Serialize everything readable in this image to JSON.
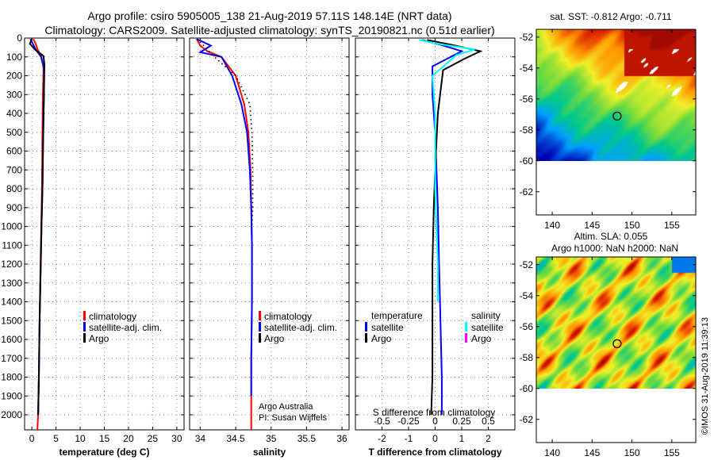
{
  "figure": {
    "title_line1": "Argo profile: csiro 5905005_138 21-Aug-2019 57.11S 148.14E (NRT data)",
    "title_line2": "Climatology: CARS2009. Satellite-adjusted climatology: synTS_20190821.nc (0.51d earlier)",
    "watermark": "©IMOS 31-Aug-2019 11:39:13",
    "credit_line1": "Argo Australia",
    "credit_line2": "PI: Susan Wijffels"
  },
  "colors": {
    "climatology": "#ff0000",
    "satellite": "#0000ff",
    "argo": "#000000",
    "sal_satellite": "#00ffff",
    "sal_argo": "#ff00ff"
  },
  "chart_data": [
    {
      "type": "line",
      "id": "temperature",
      "xlabel": "temperature (deg C)",
      "xlim": [
        -1.5,
        31.5
      ],
      "xticks": [
        0,
        5,
        10,
        15,
        20,
        25,
        30
      ],
      "ylim": [
        2080,
        0
      ],
      "yticks": [
        0,
        100,
        200,
        300,
        400,
        500,
        600,
        700,
        800,
        900,
        1000,
        1100,
        1200,
        1300,
        1400,
        1500,
        1600,
        1700,
        1800,
        1900,
        2000
      ],
      "legend": [
        "climatology",
        "satellite-adj. clim.",
        "Argo"
      ],
      "series": [
        {
          "name": "climatology",
          "color": "#ff0000",
          "x": [
            0.3,
            0.8,
            1.2,
            2.0,
            2.4,
            2.3,
            2.2,
            2.1,
            1.95,
            1.8,
            1.6,
            1.45,
            1.3,
            1.15
          ],
          "y": [
            5,
            30,
            60,
            100,
            160,
            300,
            500,
            800,
            1000,
            1200,
            1500,
            1800,
            2000,
            2080
          ]
        },
        {
          "name": "satellite-adj. clim.",
          "color": "#0000ff",
          "x": [
            -0.3,
            0.2,
            0.8,
            1.9,
            2.5,
            2.5,
            2.35,
            2.2,
            2.0,
            1.85,
            1.6,
            1.45,
            1.3
          ],
          "y": [
            5,
            30,
            60,
            100,
            160,
            300,
            500,
            800,
            1000,
            1200,
            1500,
            1800,
            2000
          ]
        },
        {
          "name": "Argo",
          "color": "#000000",
          "x": [
            0.0,
            -0.4,
            0.6,
            2.4,
            2.6,
            2.5,
            2.35,
            2.2,
            2.0,
            1.85,
            1.6,
            1.45,
            1.3
          ],
          "y": [
            5,
            30,
            60,
            95,
            140,
            300,
            500,
            800,
            1000,
            1200,
            1500,
            1800,
            2000
          ]
        }
      ]
    },
    {
      "type": "line",
      "id": "salinity",
      "xlabel": "salinity",
      "xlim": [
        33.85,
        36.1
      ],
      "xticks": [
        34,
        34.5,
        35,
        35.5,
        36
      ],
      "ylim": [
        2080,
        0
      ],
      "legend": [
        "climatology",
        "satellite-adj. clim.",
        "Argo"
      ],
      "series": [
        {
          "name": "climatology",
          "color": "#ff0000",
          "x": [
            33.95,
            34.0,
            34.1,
            34.3,
            34.5,
            34.62,
            34.68,
            34.71,
            34.72,
            34.73,
            34.73,
            34.72,
            34.72,
            34.72
          ],
          "y": [
            5,
            40,
            70,
            100,
            200,
            350,
            500,
            700,
            900,
            1100,
            1400,
            1700,
            1900,
            2080
          ]
        },
        {
          "name": "satellite-adj. clim.",
          "color": "#0000ff",
          "x": [
            33.95,
            34.15,
            34.0,
            34.3,
            34.45,
            34.58,
            34.66,
            34.7,
            34.72,
            34.73,
            34.73,
            34.72,
            34.72
          ],
          "y": [
            5,
            40,
            75,
            100,
            200,
            350,
            500,
            700,
            900,
            1100,
            1400,
            1700,
            1900
          ]
        },
        {
          "name": "Argo",
          "color": "#000000",
          "dotted": true,
          "x": [
            33.95,
            34.05,
            34.2,
            34.5,
            34.7,
            34.73,
            34.74,
            34.74,
            34.73
          ],
          "y": [
            5,
            40,
            100,
            200,
            350,
            500,
            700,
            900,
            1000
          ]
        }
      ]
    },
    {
      "type": "line",
      "id": "difference",
      "xlabel": "T difference from climatology",
      "xlabel_top": "S difference from climatology",
      "xlim": [
        -3.0,
        3.0
      ],
      "xticks": [
        -2,
        -1,
        0,
        1,
        2
      ],
      "xticks_top": [
        "-0.5",
        "-0.25",
        "0",
        "0.25",
        "0.5"
      ],
      "xticks_top_pos": [
        -2,
        -1,
        0,
        1,
        2
      ],
      "ylim": [
        2080,
        0
      ],
      "legend_left_title": "temperature",
      "legend_right_title": "salinity",
      "legend_left": [
        "satellite",
        "Argo"
      ],
      "legend_right": [
        "satellite",
        "Argo"
      ],
      "series": [
        {
          "name": "T satellite",
          "color": "#0000ff",
          "x": [
            -0.5,
            0.2,
            1.0,
            -0.1,
            -0.1,
            0.0,
            0.05,
            0.1,
            0.15,
            0.2,
            0.25,
            0.25
          ],
          "y": [
            10,
            35,
            70,
            150,
            300,
            500,
            700,
            900,
            1200,
            1500,
            1800,
            2000
          ]
        },
        {
          "name": "T Argo",
          "color": "#000000",
          "x": [
            -0.3,
            0.6,
            1.7,
            1.1,
            0.3,
            0.1,
            0.0,
            -0.05,
            -0.1,
            -0.1,
            -0.1,
            -0.15
          ],
          "y": [
            10,
            35,
            70,
            110,
            170,
            400,
            700,
            900,
            1200,
            1500,
            1800,
            2000
          ]
        },
        {
          "name": "S satellite",
          "color": "#00ffff",
          "x": [
            -0.6,
            0.3,
            1.5,
            0.8,
            -0.1,
            0.0,
            0.0,
            0.0,
            0.05,
            0.1,
            0.1
          ],
          "y": [
            10,
            35,
            60,
            90,
            200,
            400,
            600,
            800,
            1000,
            1200,
            1400
          ]
        }
      ]
    },
    {
      "type": "heatmap",
      "id": "sst_map",
      "title": "sat. SST: -0.812 Argo: -0.711",
      "xlim": [
        138,
        158
      ],
      "ylim": [
        -63.5,
        -51.5
      ],
      "xticks": [
        140,
        145,
        150,
        155
      ],
      "yticks": [
        -52,
        -54,
        -56,
        -58,
        -60,
        -62
      ],
      "data_bottom_lat": -60,
      "marker": {
        "lon": 148.14,
        "lat": -57.11
      }
    },
    {
      "type": "heatmap",
      "id": "sla_map",
      "title_line1": "Altim. SLA: 0.055",
      "title_line2": "Argo h1000: NaN h2000: NaN",
      "xlim": [
        138,
        158
      ],
      "ylim": [
        -63.5,
        -51.5
      ],
      "xticks": [
        140,
        145,
        150,
        155
      ],
      "yticks": [
        -52,
        -54,
        -56,
        -58,
        -60,
        -62
      ],
      "data_bottom_lat": -60,
      "marker": {
        "lon": 148.14,
        "lat": -57.11
      }
    }
  ]
}
